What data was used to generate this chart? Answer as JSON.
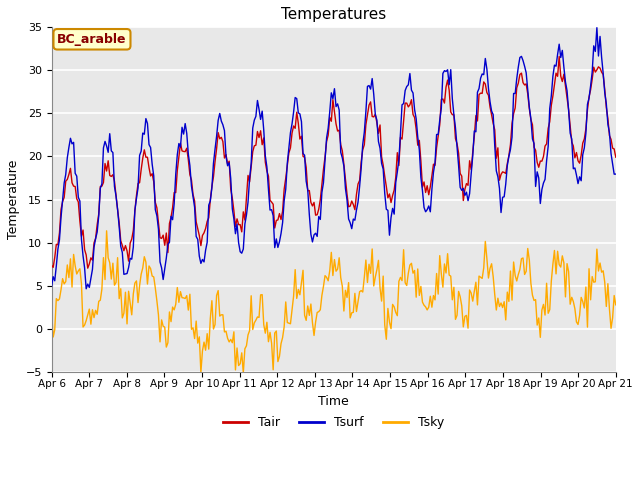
{
  "title": "Temperatures",
  "xlabel": "Time",
  "ylabel": "Temperature",
  "ylim": [
    -5,
    35
  ],
  "yticks": [
    -5,
    0,
    5,
    10,
    15,
    20,
    25,
    30,
    35
  ],
  "xtick_labels": [
    "Apr 6",
    "Apr 7",
    "Apr 8",
    "Apr 9",
    "Apr 10",
    "Apr 11",
    "Apr 12",
    "Apr 13",
    "Apr 14",
    "Apr 15",
    "Apr 16",
    "Apr 17",
    "Apr 18",
    "Apr 19",
    "Apr 20",
    "Apr 21"
  ],
  "tair_color": "#cc0000",
  "tsurf_color": "#0000cc",
  "tsky_color": "#ffaa00",
  "line_width": 1.0,
  "annotation_text": "BC_arable",
  "annotation_bg": "#ffffcc",
  "annotation_border": "#cc8800",
  "annotation_text_color": "#880000",
  "bg_color": "#e8e8e8",
  "grid_color": "#ffffff",
  "fig_bg": "#ffffff",
  "n_days": 15,
  "n_points": 360,
  "legend_labels": [
    "Tair",
    "Tsurf",
    "Tsky"
  ]
}
